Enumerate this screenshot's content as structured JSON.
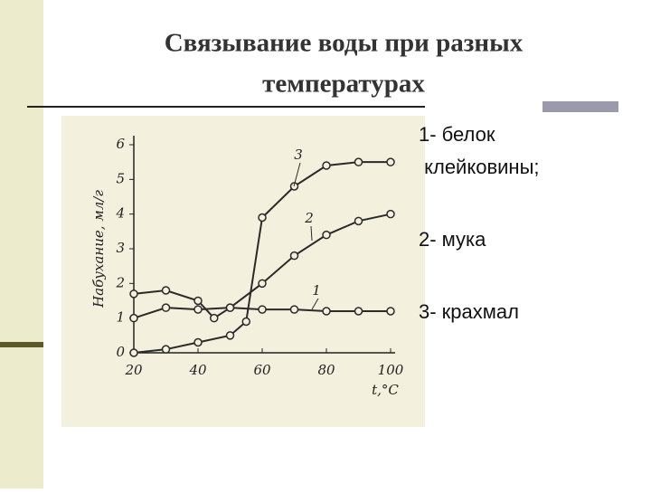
{
  "slide": {
    "title_lines": [
      "Связывание воды при разных",
      "температурах"
    ],
    "legend_lines": [
      "1- белок",
      " клейковины;",
      "2- мука",
      "3- крахмал"
    ]
  },
  "chart_data": {
    "type": "line",
    "y_label": "Набухание, мл/г",
    "x_label": "t,°C",
    "xlim": [
      20,
      100
    ],
    "ylim": [
      0,
      6
    ],
    "xticks": [
      20,
      40,
      60,
      80,
      100
    ],
    "yticks": [
      0,
      1,
      2,
      3,
      4,
      5,
      6
    ],
    "series": [
      {
        "name": "1",
        "color": "#2a2a2a",
        "x": [
          20,
          30,
          40,
          50,
          60,
          70,
          80,
          90,
          100
        ],
        "values": [
          1.0,
          1.3,
          1.25,
          1.3,
          1.25,
          1.25,
          1.2,
          1.2,
          1.2
        ]
      },
      {
        "name": "2",
        "color": "#2a2a2a",
        "x": [
          20,
          30,
          40,
          45,
          50,
          60,
          70,
          80,
          90,
          100
        ],
        "values": [
          1.7,
          1.8,
          1.5,
          1.0,
          1.3,
          2.0,
          2.8,
          3.4,
          3.8,
          4.0
        ]
      },
      {
        "name": "3",
        "color": "#2a2a2a",
        "x": [
          20,
          30,
          40,
          50,
          55,
          60,
          70,
          80,
          90,
          100
        ],
        "values": [
          0.0,
          0.1,
          0.3,
          0.5,
          0.9,
          3.9,
          4.8,
          5.4,
          5.5,
          5.5
        ]
      }
    ]
  }
}
